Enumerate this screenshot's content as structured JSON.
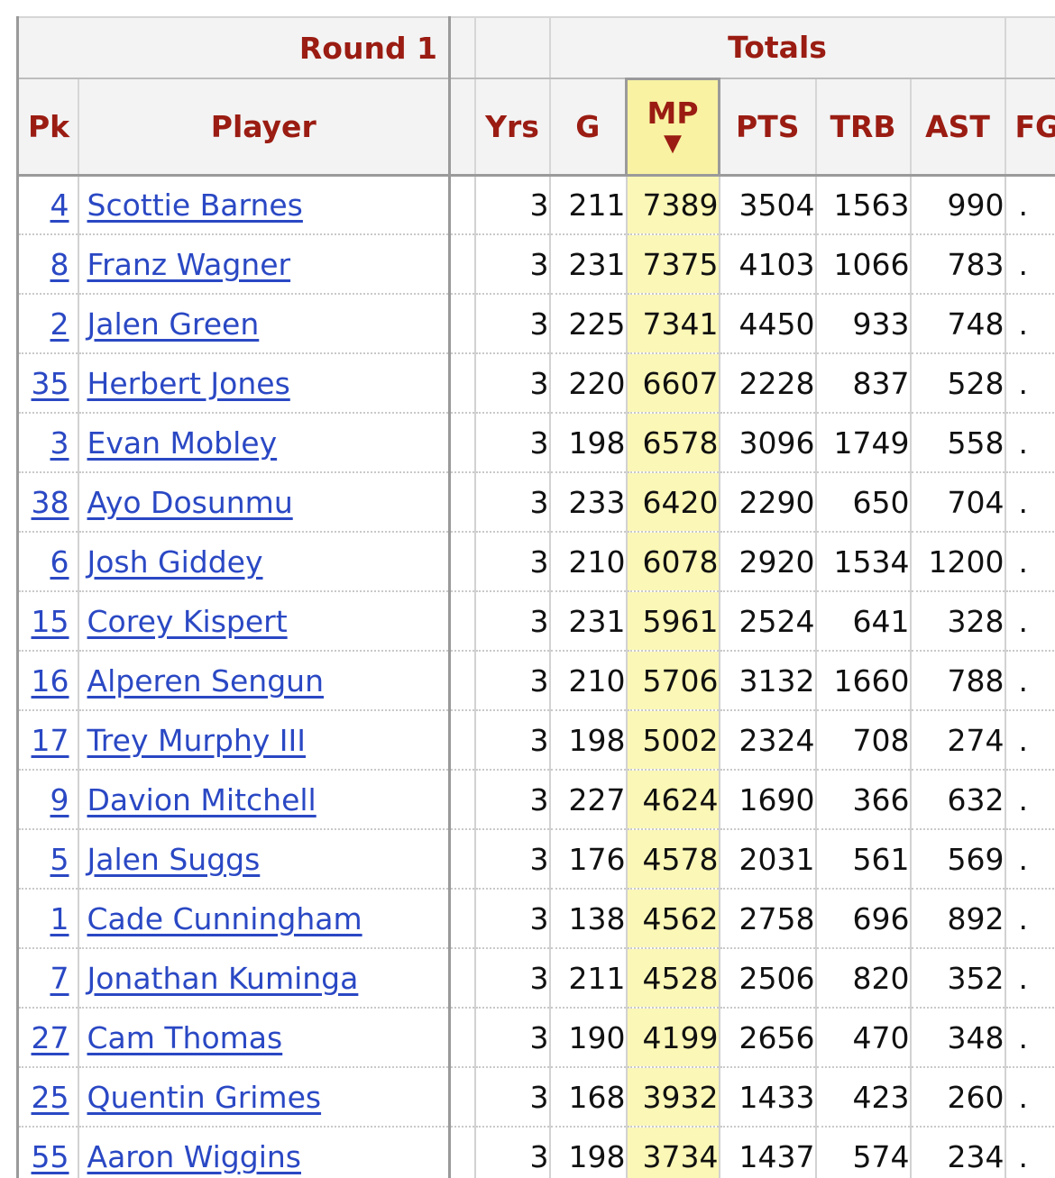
{
  "header": {
    "group_round": "Round 1",
    "group_totals": "Totals",
    "columns": {
      "pk": "Pk",
      "player": "Player",
      "yrs": "Yrs",
      "g": "G",
      "mp": "MP",
      "mp_sort_indicator": "▼",
      "pts": "PTS",
      "trb": "TRB",
      "ast": "AST",
      "fg": "FG"
    }
  },
  "rows": [
    {
      "pk": "4",
      "player": "Scottie Barnes",
      "yrs": "3",
      "g": "211",
      "mp": "7389",
      "pts": "3504",
      "trb": "1563",
      "ast": "990",
      "fg": "."
    },
    {
      "pk": "8",
      "player": "Franz Wagner",
      "yrs": "3",
      "g": "231",
      "mp": "7375",
      "pts": "4103",
      "trb": "1066",
      "ast": "783",
      "fg": "."
    },
    {
      "pk": "2",
      "player": "Jalen Green",
      "yrs": "3",
      "g": "225",
      "mp": "7341",
      "pts": "4450",
      "trb": "933",
      "ast": "748",
      "fg": "."
    },
    {
      "pk": "35",
      "player": "Herbert Jones",
      "yrs": "3",
      "g": "220",
      "mp": "6607",
      "pts": "2228",
      "trb": "837",
      "ast": "528",
      "fg": "."
    },
    {
      "pk": "3",
      "player": "Evan Mobley",
      "yrs": "3",
      "g": "198",
      "mp": "6578",
      "pts": "3096",
      "trb": "1749",
      "ast": "558",
      "fg": "."
    },
    {
      "pk": "38",
      "player": "Ayo Dosunmu",
      "yrs": "3",
      "g": "233",
      "mp": "6420",
      "pts": "2290",
      "trb": "650",
      "ast": "704",
      "fg": "."
    },
    {
      "pk": "6",
      "player": "Josh Giddey",
      "yrs": "3",
      "g": "210",
      "mp": "6078",
      "pts": "2920",
      "trb": "1534",
      "ast": "1200",
      "fg": "."
    },
    {
      "pk": "15",
      "player": "Corey Kispert",
      "yrs": "3",
      "g": "231",
      "mp": "5961",
      "pts": "2524",
      "trb": "641",
      "ast": "328",
      "fg": "."
    },
    {
      "pk": "16",
      "player": "Alperen Sengun",
      "yrs": "3",
      "g": "210",
      "mp": "5706",
      "pts": "3132",
      "trb": "1660",
      "ast": "788",
      "fg": "."
    },
    {
      "pk": "17",
      "player": "Trey Murphy III",
      "yrs": "3",
      "g": "198",
      "mp": "5002",
      "pts": "2324",
      "trb": "708",
      "ast": "274",
      "fg": "."
    },
    {
      "pk": "9",
      "player": "Davion Mitchell",
      "yrs": "3",
      "g": "227",
      "mp": "4624",
      "pts": "1690",
      "trb": "366",
      "ast": "632",
      "fg": "."
    },
    {
      "pk": "5",
      "player": "Jalen Suggs",
      "yrs": "3",
      "g": "176",
      "mp": "4578",
      "pts": "2031",
      "trb": "561",
      "ast": "569",
      "fg": "."
    },
    {
      "pk": "1",
      "player": "Cade Cunningham",
      "yrs": "3",
      "g": "138",
      "mp": "4562",
      "pts": "2758",
      "trb": "696",
      "ast": "892",
      "fg": "."
    },
    {
      "pk": "7",
      "player": "Jonathan Kuminga",
      "yrs": "3",
      "g": "211",
      "mp": "4528",
      "pts": "2506",
      "trb": "820",
      "ast": "352",
      "fg": "."
    },
    {
      "pk": "27",
      "player": "Cam Thomas",
      "yrs": "3",
      "g": "190",
      "mp": "4199",
      "pts": "2656",
      "trb": "470",
      "ast": "348",
      "fg": "."
    },
    {
      "pk": "25",
      "player": "Quentin Grimes",
      "yrs": "3",
      "g": "168",
      "mp": "3932",
      "pts": "1433",
      "trb": "423",
      "ast": "260",
      "fg": "."
    },
    {
      "pk": "55",
      "player": "Aaron Wiggins",
      "yrs": "3",
      "g": "198",
      "mp": "3734",
      "pts": "1437",
      "trb": "574",
      "ast": "234",
      "fg": "."
    }
  ]
}
